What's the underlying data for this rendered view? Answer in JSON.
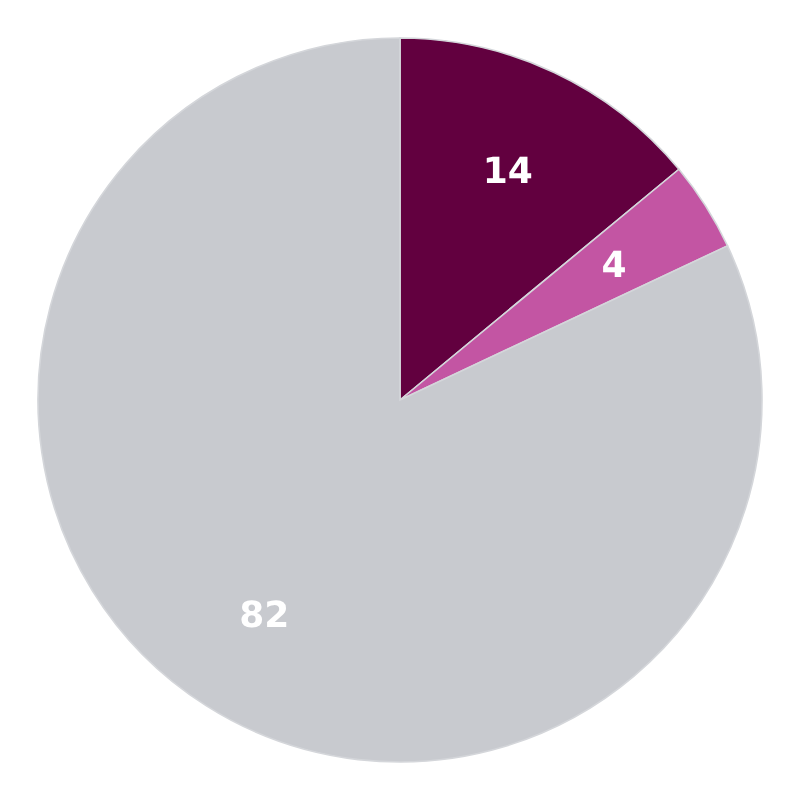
{
  "chart_data": {
    "type": "pie",
    "categories": [
      null,
      null,
      null
    ],
    "values": [
      14,
      4,
      82
    ],
    "colors": [
      "#62003f",
      "#c355a3",
      "#c8cacf"
    ],
    "data_labels": true
  }
}
